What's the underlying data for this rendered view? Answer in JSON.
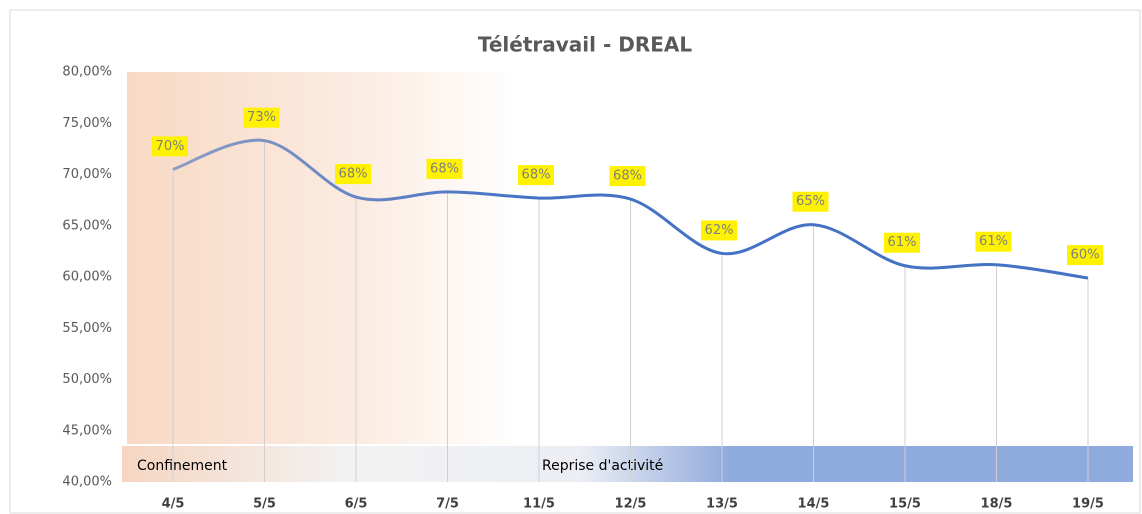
{
  "chart_data": {
    "type": "line",
    "title": "Télétravail  - DREAL",
    "categories": [
      "4/5",
      "5/5",
      "6/5",
      "7/5",
      "11/5",
      "12/5",
      "13/5",
      "14/5",
      "15/5",
      "18/5",
      "19/5"
    ],
    "series": [
      {
        "name": "Télétravail",
        "color": "#4472c4",
        "values": [
          70.5,
          73.3,
          67.8,
          68.3,
          67.7,
          67.6,
          62.3,
          65.1,
          61.1,
          61.2,
          59.9
        ],
        "value_labels": [
          "70%",
          "73%",
          "68%",
          "68%",
          "68%",
          "68%",
          "62%",
          "65%",
          "61%",
          "61%",
          "60%"
        ]
      }
    ],
    "ylim": [
      40,
      80
    ],
    "yticks": [
      {
        "value": 40,
        "label": "40,00%"
      },
      {
        "value": 45,
        "label": "45,00%"
      },
      {
        "value": 50,
        "label": "50,00%"
      },
      {
        "value": 55,
        "label": "55,00%"
      },
      {
        "value": 60,
        "label": "60,00%"
      },
      {
        "value": 65,
        "label": "65,00%"
      },
      {
        "value": 70,
        "label": "70,00%"
      },
      {
        "value": 75,
        "label": "75,00%"
      },
      {
        "value": 80,
        "label": "80,00%"
      }
    ],
    "annotations": [
      "Confinement",
      "Reprise d'activité"
    ],
    "smooth": true
  }
}
